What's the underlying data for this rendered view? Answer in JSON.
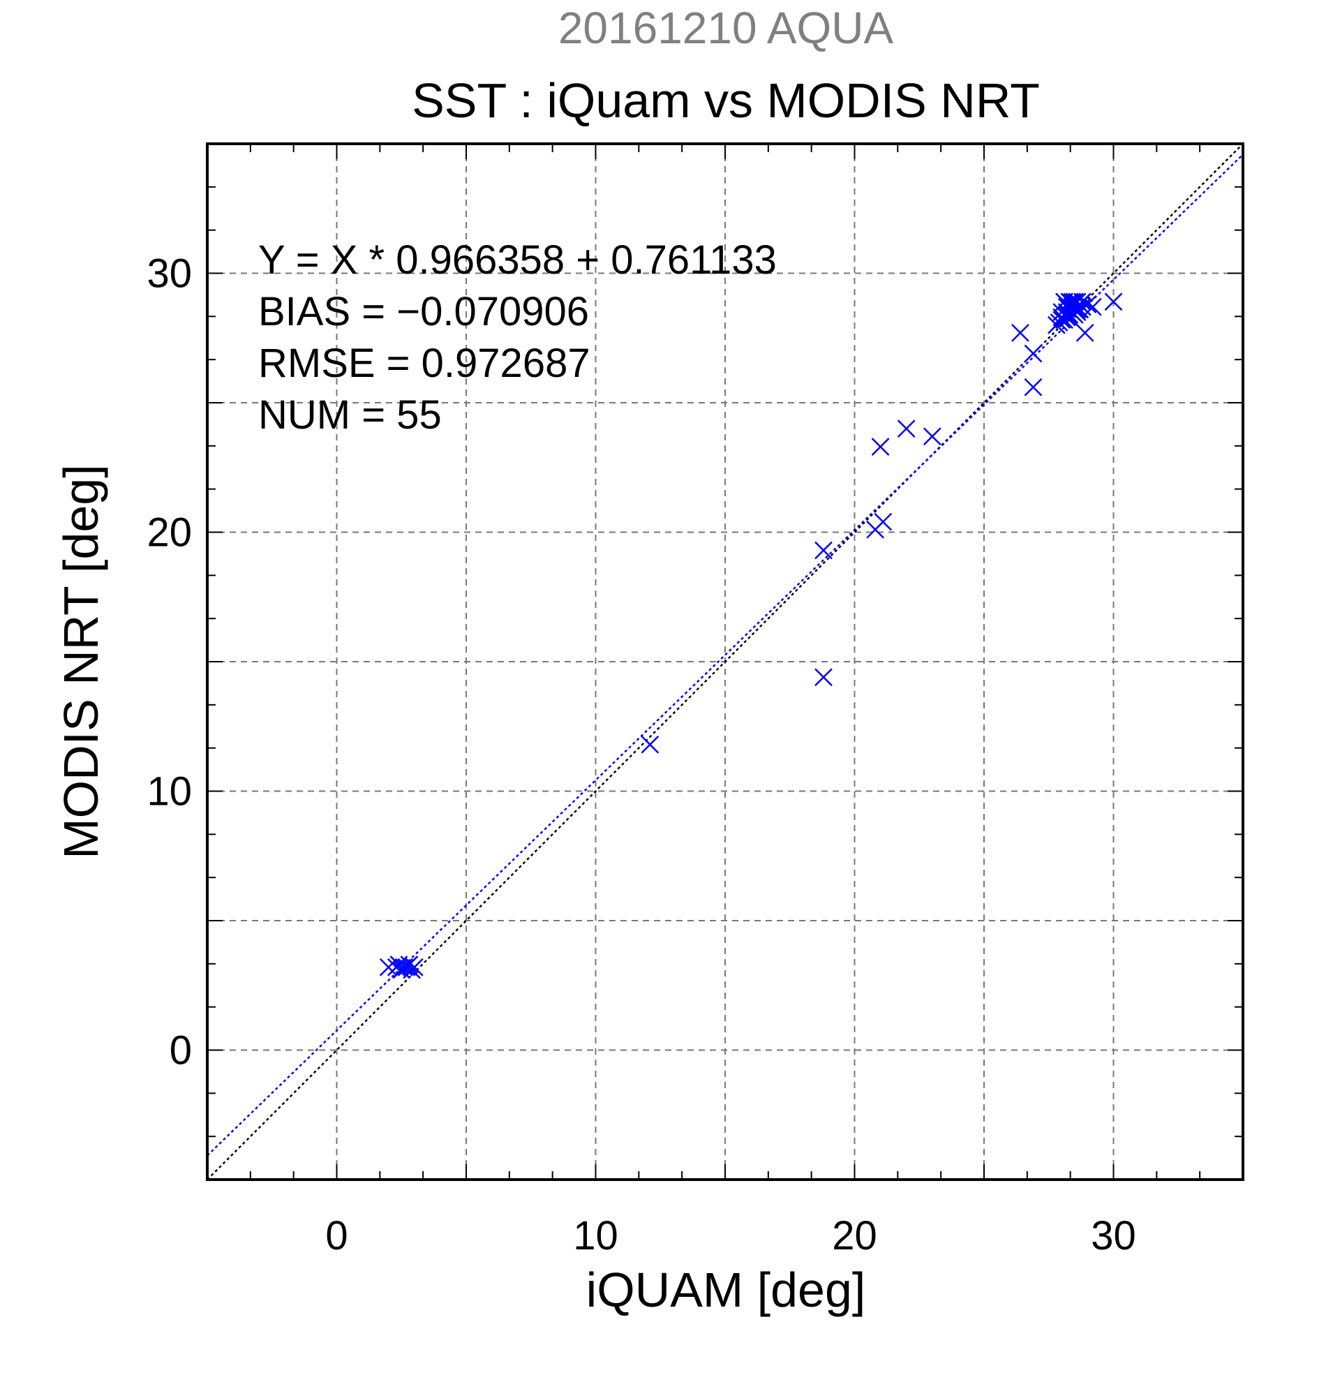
{
  "chart_data": {
    "type": "scatter",
    "supertitle": "20161210 AQUA",
    "title": "SST : iQuam vs MODIS NRT",
    "xlabel": "iQUAM [deg]",
    "ylabel": "MODIS NRT [deg]",
    "xlim": [
      -5,
      35
    ],
    "ylim": [
      -5,
      35
    ],
    "xticks": [
      0,
      10,
      20,
      30
    ],
    "yticks": [
      0,
      10,
      20,
      30
    ],
    "grid": true,
    "annotations": [
      "Y = X * 0.966358 + 0.761133",
      "BIAS = −0.070906",
      "RMSE = 0.972687",
      "NUM = 55"
    ],
    "fit": {
      "slope": 0.966358,
      "intercept": 0.761133
    },
    "colors": {
      "points": "#0000ff",
      "fit_line": "#0000ff",
      "identity_line": "#000000",
      "supertitle": "#808080",
      "grid": "#777777"
    },
    "series": [
      {
        "marker": "x",
        "x": [
          2.0,
          2.3,
          2.5,
          2.6,
          2.8,
          2.9,
          3.0,
          2.4,
          2.7,
          12.1,
          18.8,
          18.8,
          20.8,
          21.0,
          21.1,
          22.0,
          23.0,
          26.4,
          26.9,
          26.9,
          27.8,
          27.9,
          28.0,
          28.0,
          28.1,
          28.1,
          28.2,
          28.2,
          28.2,
          28.3,
          28.3,
          28.3,
          28.4,
          28.4,
          28.4,
          28.5,
          28.5,
          28.5,
          28.6,
          28.6,
          28.6,
          28.7,
          28.7,
          28.8,
          28.8,
          28.9,
          29.0,
          29.2,
          30.0,
          28.0,
          28.3,
          28.5,
          28.6,
          28.2,
          28.4
        ],
        "y": [
          3.2,
          3.2,
          3.1,
          3.2,
          3.3,
          3.1,
          3.2,
          3.3,
          3.2,
          11.8,
          19.3,
          14.4,
          20.1,
          23.3,
          20.4,
          24.0,
          23.7,
          27.7,
          26.9,
          25.6,
          28.0,
          28.1,
          28.3,
          28.5,
          28.9,
          28.2,
          28.5,
          28.7,
          28.4,
          28.6,
          28.9,
          28.3,
          28.8,
          28.5,
          28.7,
          28.6,
          28.9,
          28.4,
          28.7,
          28.9,
          28.5,
          28.8,
          28.6,
          28.9,
          28.7,
          27.7,
          28.8,
          28.7,
          28.9,
          28.2,
          28.4,
          28.8,
          28.6,
          28.3,
          28.9
        ]
      }
    ]
  }
}
